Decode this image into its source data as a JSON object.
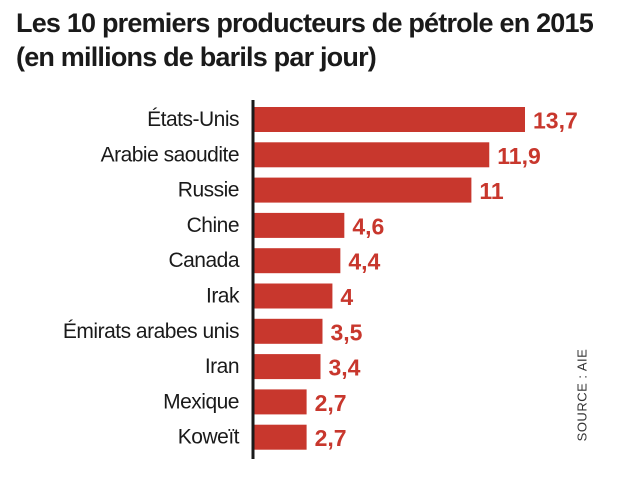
{
  "title_line1": "Les 10 premiers producteurs de pétrole en 2015",
  "title_line2": "(en millions de barils par jour)",
  "source": "SOURCE : AIE",
  "colors": {
    "bar": "#c8372d",
    "value_label": "#c8372d",
    "axis": "#1a1a1a",
    "text": "#1a1a1a"
  },
  "chart_data": {
    "type": "bar",
    "orientation": "horizontal",
    "title": "Les 10 premiers producteurs de pétrole en 2015",
    "subtitle": "(en millions de barils par jour)",
    "categories": [
      "États-Unis",
      "Arabie saoudite",
      "Russie",
      "Chine",
      "Canada",
      "Irak",
      "Émirats arabes unis",
      "Iran",
      "Mexique",
      "Koweït"
    ],
    "values": [
      13.7,
      11.9,
      11,
      4.6,
      4.4,
      4,
      3.5,
      3.4,
      2.7,
      2.7
    ],
    "value_labels": [
      "13,7",
      "11,9",
      "11",
      "4,6",
      "4,4",
      "4",
      "3,5",
      "3,4",
      "2,7",
      "2,7"
    ],
    "xlim": [
      0,
      13.7
    ],
    "grid": false,
    "legend": "none"
  }
}
